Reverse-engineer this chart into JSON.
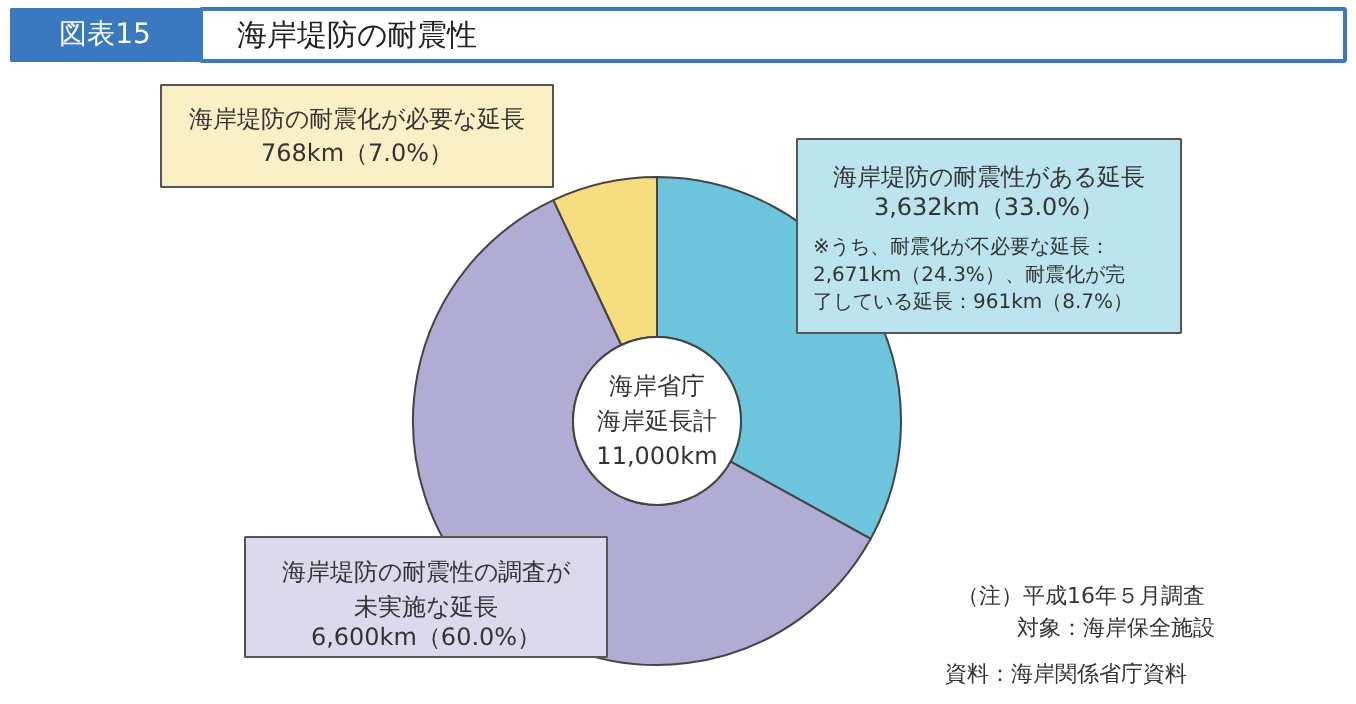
{
  "chart_data": {
    "type": "donut",
    "subtitle": "図表15",
    "title": "海岸堤防の耐震性",
    "categories": [
      "海岸堤防の耐震性がある延長",
      "海岸堤防の耐震性の調査が未実施な延長",
      "海岸堤防の耐震化が必要な延長"
    ],
    "values": [
      3632,
      6600,
      768
    ],
    "colors": [
      "#6cc5dc",
      "#b0acd3",
      "#f5dd80"
    ],
    "value_labels": [
      "3,632km（33.0%）",
      "6,600km（60.0%）",
      "768km（7.0%）"
    ],
    "annotations": [
      "※うち、耐震化が不必要な延長：2,671km（24.3%）、耐震化が完了している延長：961km（8.7%）",
      "海岸省庁海岸延長計11,000km",
      "（注）平成16年５月調査",
      "対象：海岸保全施設",
      "資料：海岸関係省庁資料"
    ]
  }
}
